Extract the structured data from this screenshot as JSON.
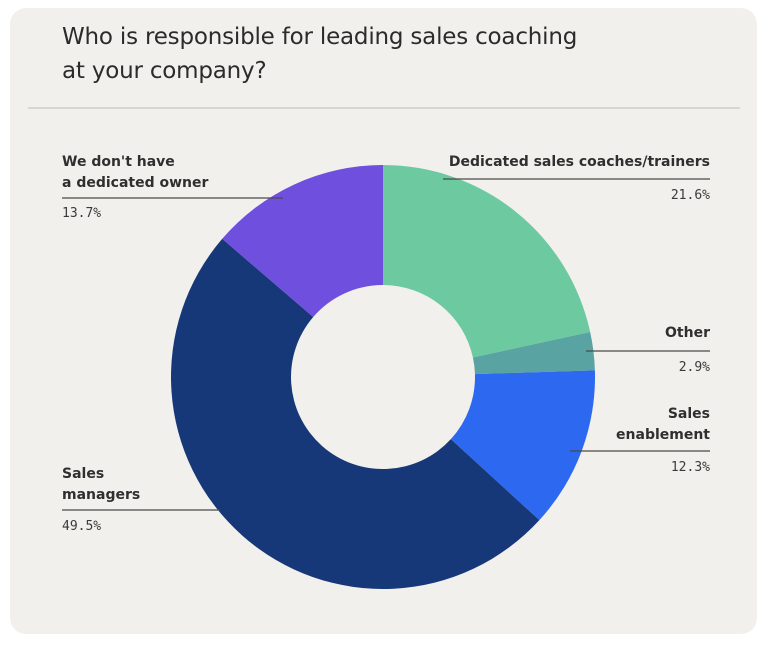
{
  "title": "Who is responsible for leading sales coaching at your company?",
  "title_lines": [
    "Who is responsible for leading sales coaching",
    "at your company?"
  ],
  "labels": {
    "no_owner": {
      "line1": "We don't have",
      "line2": "a dedicated owner",
      "value": "13.7%"
    },
    "coaches": {
      "line1": "Dedicated sales coaches/trainers",
      "value": "21.6%"
    },
    "other": {
      "line1": "Other",
      "value": "2.9%"
    },
    "enablement": {
      "line1": "Sales",
      "line2": "enablement",
      "value": "12.3%"
    },
    "managers": {
      "line1": "Sales",
      "line2": "managers",
      "value": "49.5%"
    }
  },
  "colors": {
    "background": "#f2f0ec",
    "coaches": "#6cc9a0",
    "other": "#5aa3a3",
    "enablement": "#2d68f0",
    "managers": "#173878",
    "no_owner": "#6f4fde"
  },
  "chart_data": {
    "type": "pie",
    "subtype": "donut",
    "title": "Who is responsible for leading sales coaching at your company?",
    "categories": [
      "Dedicated sales coaches/trainers",
      "Other",
      "Sales enablement",
      "Sales managers",
      "We don't have a dedicated owner"
    ],
    "values": [
      21.6,
      2.9,
      12.3,
      49.5,
      13.7
    ],
    "units": "%",
    "colors": [
      "#6cc9a0",
      "#5aa3a3",
      "#2d68f0",
      "#173878",
      "#6f4fde"
    ],
    "start_angle": "12 o'clock",
    "direction": "clockwise",
    "legend": "callout labels with leader lines"
  }
}
